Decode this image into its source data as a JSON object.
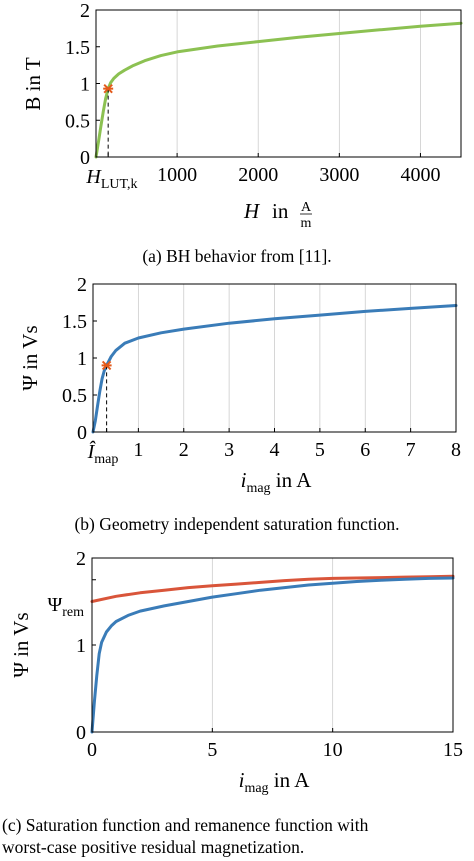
{
  "chart_data": [
    {
      "type": "line",
      "xlabel_main": "H",
      "xlabel_in": "in",
      "xlabel_unit_num": "A",
      "xlabel_unit_den": "m",
      "ylabel": "B in T",
      "xlim": [
        0,
        4500
      ],
      "ylim": [
        0,
        2
      ],
      "x_ticks": [
        1000,
        2000,
        3000,
        4000
      ],
      "x_special_tick": {
        "main": "H",
        "sub": "LUT,k",
        "value": 150
      },
      "y_ticks": [
        "0",
        "0.5",
        "1",
        "1.5",
        "2"
      ],
      "y_tick_values": [
        0,
        0.5,
        1,
        1.5,
        2
      ],
      "grid": "vertical",
      "series": [
        {
          "color": "#8cc152",
          "x": [
            0,
            30,
            60,
            90,
            120,
            150,
            180,
            220,
            280,
            350,
            450,
            600,
            800,
            1000,
            1500,
            2000,
            2500,
            3000,
            3500,
            4000,
            4500
          ],
          "y": [
            0,
            0.2,
            0.42,
            0.62,
            0.8,
            0.93,
            1.01,
            1.07,
            1.13,
            1.18,
            1.24,
            1.31,
            1.38,
            1.43,
            1.51,
            1.57,
            1.63,
            1.68,
            1.73,
            1.78,
            1.82
          ]
        }
      ],
      "marker": {
        "x": 150,
        "y": 0.93,
        "color": "#e35a1b"
      },
      "caption": "(a) BH behavior from [11]."
    },
    {
      "type": "line",
      "xlabel_main": "i",
      "xlabel_sub": "mag",
      "xlabel_rest": " in A",
      "ylabel": "Ψ in Vs",
      "xlim": [
        0,
        8
      ],
      "ylim": [
        0,
        2
      ],
      "x_ticks": [
        1,
        2,
        3,
        4,
        5,
        6,
        7,
        8
      ],
      "x_special_tick": {
        "main": "Î",
        "sub": "map",
        "value": 0.3
      },
      "y_ticks": [
        "0",
        "0.5",
        "1",
        "1.5",
        "2"
      ],
      "y_tick_values": [
        0,
        0.5,
        1,
        1.5,
        2
      ],
      "grid": "vertical",
      "series": [
        {
          "color": "#3a7cb8",
          "x": [
            0,
            0.05,
            0.1,
            0.15,
            0.2,
            0.25,
            0.3,
            0.4,
            0.5,
            0.7,
            1,
            1.5,
            2,
            3,
            4,
            5,
            6,
            7,
            8
          ],
          "y": [
            0,
            0.15,
            0.35,
            0.55,
            0.72,
            0.83,
            0.9,
            1.02,
            1.1,
            1.2,
            1.27,
            1.34,
            1.39,
            1.47,
            1.53,
            1.58,
            1.63,
            1.67,
            1.71
          ]
        }
      ],
      "marker": {
        "x": 0.3,
        "y": 0.9,
        "color": "#e35a1b"
      },
      "caption": "(b) Geometry independent saturation function."
    },
    {
      "type": "line",
      "xlabel_main": "i",
      "xlabel_sub": "mag",
      "xlabel_rest": " in A",
      "ylabel": "Ψ in Vs",
      "xlim": [
        0,
        15
      ],
      "ylim": [
        0,
        2
      ],
      "x_ticks": [
        "0",
        "5",
        "10",
        "15"
      ],
      "x_tick_values": [
        0,
        5,
        10,
        15
      ],
      "y_ticks": [
        "0",
        "1",
        "2"
      ],
      "y_tick_values": [
        0,
        1,
        2
      ],
      "y_special_tick": {
        "main": "Ψ",
        "sub": "rem",
        "value": 1.75
      },
      "grid": "vertical",
      "series": [
        {
          "color": "#d9553a",
          "x": [
            0,
            1,
            2,
            3,
            4,
            5,
            6,
            7,
            8,
            9,
            10,
            11,
            12,
            13,
            14,
            15
          ],
          "y": [
            1.5,
            1.56,
            1.6,
            1.63,
            1.66,
            1.68,
            1.7,
            1.72,
            1.74,
            1.755,
            1.765,
            1.77,
            1.775,
            1.78,
            1.785,
            1.79
          ]
        },
        {
          "color": "#3a7cb8",
          "x": [
            0,
            0.1,
            0.2,
            0.3,
            0.4,
            0.6,
            0.8,
            1,
            1.5,
            2,
            3,
            4,
            5,
            6,
            7,
            8,
            9,
            10,
            11,
            12,
            13,
            14,
            15
          ],
          "y": [
            0,
            0.35,
            0.65,
            0.9,
            1.03,
            1.15,
            1.22,
            1.27,
            1.34,
            1.39,
            1.45,
            1.5,
            1.55,
            1.59,
            1.63,
            1.66,
            1.69,
            1.71,
            1.73,
            1.745,
            1.755,
            1.765,
            1.77
          ]
        }
      ],
      "caption_l1": "(c) Saturation function and remanence function with",
      "caption_l2": "worst-case positive residual magnetization."
    }
  ]
}
